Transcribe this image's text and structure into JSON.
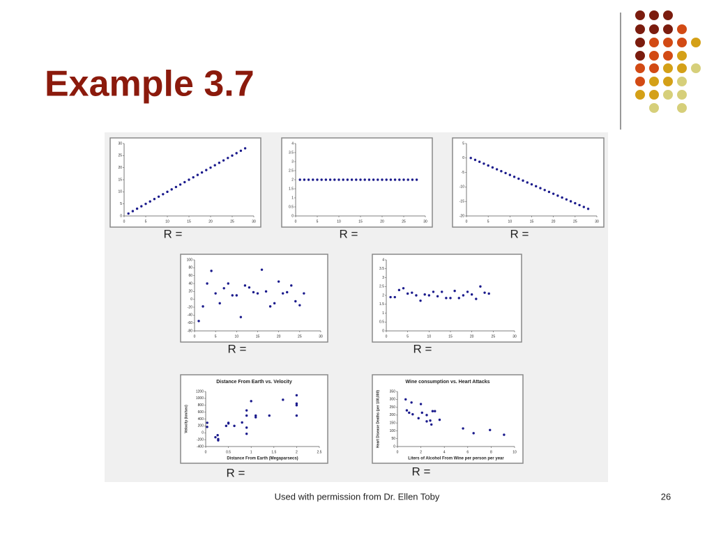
{
  "title": "Example 3.7",
  "footer": "Used with permission from Dr. Ellen Toby",
  "page_number": "26",
  "chart_data": [
    {
      "type": "scatter",
      "caption": "R =",
      "color": "#1a1a8c",
      "x": [
        1,
        2,
        3,
        4,
        5,
        6,
        7,
        8,
        9,
        10,
        11,
        12,
        13,
        14,
        15,
        16,
        17,
        18,
        19,
        20,
        21,
        22,
        23,
        24,
        25,
        26,
        27,
        28
      ],
      "values": [
        1,
        2,
        3,
        4,
        5,
        6,
        7,
        8,
        9,
        10,
        11,
        12,
        13,
        14,
        15,
        16,
        17,
        18,
        19,
        20,
        21,
        22,
        23,
        24,
        25,
        26,
        27,
        28
      ],
      "xlim": [
        0,
        30
      ],
      "ylim": [
        0,
        30
      ],
      "xticks": [
        0,
        5,
        10,
        15,
        20,
        25,
        30
      ],
      "yticks": [
        0,
        5,
        10,
        15,
        20,
        25,
        30
      ]
    },
    {
      "type": "scatter",
      "caption": "R =",
      "color": "#1a1a8c",
      "x": [
        1,
        2,
        3,
        4,
        5,
        6,
        7,
        8,
        9,
        10,
        11,
        12,
        13,
        14,
        15,
        16,
        17,
        18,
        19,
        20,
        21,
        22,
        23,
        24,
        25,
        26,
        27,
        28
      ],
      "values": [
        2,
        2,
        2,
        2,
        2,
        2,
        2,
        2,
        2,
        2,
        2,
        2,
        2,
        2,
        2,
        2,
        2,
        2,
        2,
        2,
        2,
        2,
        2,
        2,
        2,
        2,
        2,
        2
      ],
      "xlim": [
        0,
        30
      ],
      "ylim": [
        0,
        4
      ],
      "xticks": [
        0,
        5,
        10,
        15,
        20,
        25,
        30
      ],
      "yticks": [
        0,
        0.5,
        1,
        1.5,
        2,
        2.5,
        3,
        3.5,
        4
      ]
    },
    {
      "type": "scatter",
      "caption": "R =",
      "color": "#1a1a8c",
      "x": [
        1,
        2,
        3,
        4,
        5,
        6,
        7,
        8,
        9,
        10,
        11,
        12,
        13,
        14,
        15,
        16,
        17,
        18,
        19,
        20,
        21,
        22,
        23,
        24,
        25,
        26,
        27,
        28
      ],
      "values": [
        0,
        -0.65,
        -1.3,
        -1.95,
        -2.6,
        -3.25,
        -3.9,
        -4.55,
        -5.2,
        -5.85,
        -6.5,
        -7.15,
        -7.8,
        -8.45,
        -9.1,
        -9.75,
        -10.4,
        -11.05,
        -11.7,
        -12.35,
        -13,
        -13.65,
        -14.3,
        -14.95,
        -15.6,
        -16.25,
        -16.9,
        -17.55
      ],
      "xlim": [
        0,
        30
      ],
      "ylim": [
        -20,
        5
      ],
      "xticks": [
        0,
        5,
        10,
        15,
        20,
        25,
        30
      ],
      "yticks": [
        -20,
        -15,
        -10,
        -5,
        0,
        5
      ]
    },
    {
      "type": "scatter",
      "caption": "R =",
      "color": "#1a1a8c",
      "x": [
        1,
        2,
        3,
        4,
        5,
        6,
        7,
        8,
        9,
        10,
        11,
        12,
        13,
        14,
        15,
        16,
        17,
        18,
        19,
        20,
        21,
        22,
        23,
        24,
        25,
        26
      ],
      "values": [
        -55,
        -18,
        40,
        72,
        15,
        -10,
        28,
        40,
        10,
        10,
        -45,
        35,
        30,
        18,
        15,
        75,
        20,
        -18,
        -10,
        45,
        15,
        18,
        35,
        -5,
        -15,
        15
      ],
      "xlim": [
        0,
        30
      ],
      "ylim": [
        -80,
        100
      ],
      "xticks": [
        0,
        5,
        10,
        15,
        20,
        25,
        30
      ],
      "yticks": [
        -80,
        -60,
        -40,
        -20,
        0,
        20,
        40,
        60,
        80,
        100
      ]
    },
    {
      "type": "scatter",
      "caption": "R =",
      "color": "#1a1a8c",
      "x": [
        1,
        2,
        3,
        4,
        5,
        6,
        7,
        8,
        9,
        10,
        11,
        12,
        13,
        14,
        15,
        16,
        17,
        18,
        19,
        20,
        21,
        22,
        23,
        24
      ],
      "values": [
        1.9,
        1.9,
        2.3,
        2.4,
        2.1,
        2.15,
        2.0,
        1.7,
        2.05,
        2.0,
        2.2,
        1.95,
        2.2,
        1.85,
        1.85,
        2.25,
        1.85,
        2.0,
        2.2,
        2.05,
        1.8,
        2.5,
        2.15,
        2.1
      ],
      "xlim": [
        0,
        30
      ],
      "ylim": [
        0,
        4
      ],
      "xticks": [
        0,
        5,
        10,
        15,
        20,
        25,
        30
      ],
      "yticks": [
        0,
        0.5,
        1,
        1.5,
        2,
        2.5,
        3,
        3.5,
        4
      ]
    },
    {
      "type": "scatter",
      "caption": "R =",
      "color": "#1a1a8c",
      "title": "Distance From Earth vs. Velocity",
      "xlabel": "Distance From Earth (Megaparsecs)",
      "ylabel": "Velocity (km/sec)",
      "x": [
        0.032,
        0.034,
        0.214,
        0.263,
        0.275,
        0.275,
        0.45,
        0.5,
        0.5,
        0.63,
        0.8,
        0.9,
        0.9,
        0.9,
        0.9,
        1.0,
        1.1,
        1.1,
        1.4,
        1.7,
        2.0,
        2.0,
        2.0,
        2.0
      ],
      "values": [
        170,
        290,
        -130,
        -70,
        -185,
        -220,
        200,
        290,
        270,
        200,
        300,
        -30,
        650,
        150,
        500,
        920,
        450,
        500,
        500,
        960,
        500,
        850,
        800,
        1090
      ],
      "xlim": [
        0,
        2.5
      ],
      "ylim": [
        -400,
        1200
      ],
      "xticks": [
        0,
        0.5,
        1,
        1.5,
        2,
        2.5
      ],
      "yticks": [
        -400,
        -200,
        0,
        200,
        400,
        600,
        800,
        1000,
        1200
      ]
    },
    {
      "type": "scatter",
      "caption": "R =",
      "color": "#1a1a8c",
      "title": "Wine consumption vs. Heart Attacks",
      "xlabel": "Liters of Alcohol From Wine per person per year",
      "ylabel": "Heart Disease Deaths (per 100,000)",
      "x": [
        0.7,
        0.8,
        1.0,
        1.2,
        1.3,
        1.8,
        2.0,
        2.1,
        2.5,
        2.5,
        2.8,
        2.9,
        3.0,
        3.2,
        3.6,
        5.6,
        6.5,
        7.9,
        9.1
      ],
      "values": [
        300,
        230,
        215,
        280,
        205,
        180,
        270,
        215,
        160,
        200,
        165,
        140,
        225,
        225,
        170,
        115,
        85,
        105,
        75
      ],
      "xlim": [
        0,
        10
      ],
      "ylim": [
        0,
        350
      ],
      "xticks": [
        0,
        2,
        4,
        6,
        8,
        10
      ],
      "yticks": [
        0,
        50,
        100,
        150,
        200,
        250,
        300,
        350
      ]
    }
  ]
}
